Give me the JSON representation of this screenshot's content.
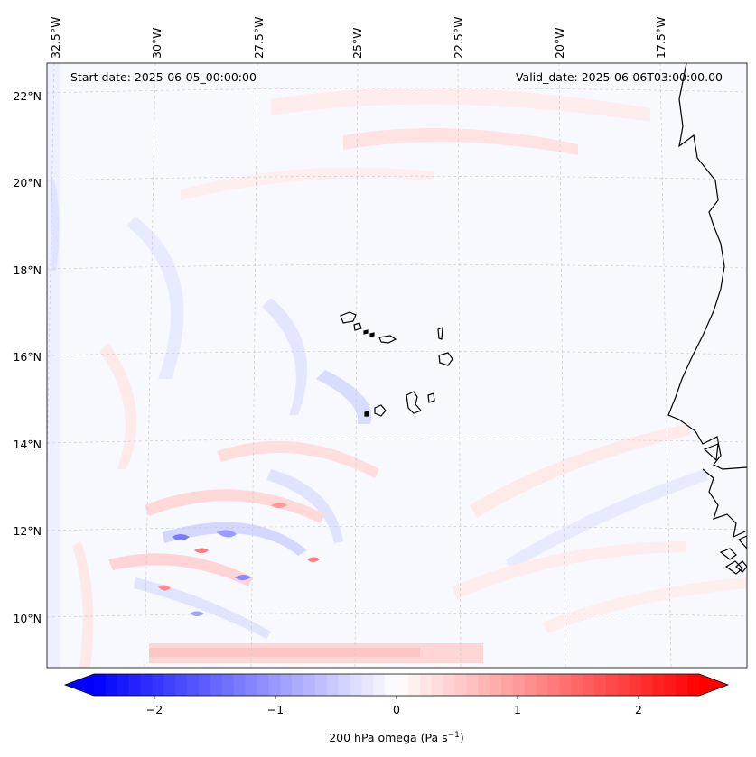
{
  "map": {
    "start_label": "Start date: 2025-06-05_00:00:00",
    "valid_label": "Valid_date: 2025-06-06T03:00:00.00",
    "lon_ticks": [
      "32.5°W",
      "30°W",
      "27.5°W",
      "25°W",
      "22.5°W",
      "20°W",
      "17.5°W"
    ],
    "lat_ticks": [
      "22°N",
      "20°N",
      "18°N",
      "16°N",
      "14°N",
      "12°N",
      "10°N"
    ]
  },
  "colorbar": {
    "ticks": [
      "−2",
      "−1",
      "0",
      "1",
      "2"
    ],
    "label_main": "200 hPa omega (Pa s",
    "label_sup": "−1",
    "label_end": ")",
    "colormap": "bwr",
    "range": [
      -2.6,
      2.6
    ],
    "extend": "both"
  },
  "colors": {
    "negative": "#0000ff",
    "positive": "#ff0000",
    "neutral": "#ffffff",
    "coastline": "#000000",
    "gridline": "#c8c8c8"
  }
}
